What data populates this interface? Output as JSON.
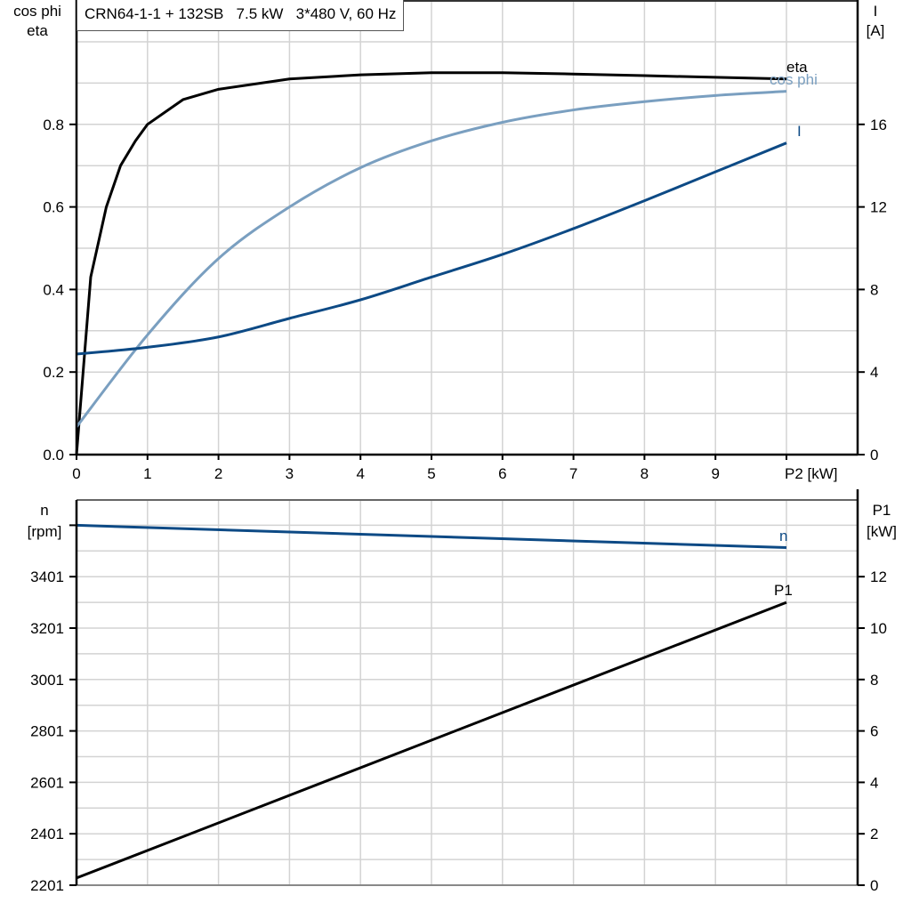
{
  "title": "CRN64-1-1 + 132SB   7.5 kW   3*480 V, 60 Hz",
  "colors": {
    "eta": "#000000",
    "cos_phi": "#7a9fc0",
    "current": "#0d4a85",
    "speed": "#0d4a85",
    "p1": "#000000",
    "grid": "#d3d3d3",
    "axis": "#000000"
  },
  "top_chart": {
    "left_axis_label_line1": "cos phi",
    "left_axis_label_line2": "eta",
    "right_axis_label_line1": "I",
    "right_axis_label_line2": "[A]",
    "x_axis_label": "P2 [kW]",
    "x_ticks": [
      "0",
      "1",
      "2",
      "3",
      "4",
      "5",
      "6",
      "7",
      "8",
      "9"
    ],
    "left_ticks": [
      "0.0",
      "0.2",
      "0.4",
      "0.6",
      "0.8"
    ],
    "right_ticks": [
      "0",
      "4",
      "8",
      "12",
      "16"
    ],
    "curve_labels": {
      "eta": "eta",
      "cos_phi": "cos phi",
      "current": "I"
    }
  },
  "bottom_chart": {
    "left_axis_label_line1": "n",
    "left_axis_label_line2": "[rpm]",
    "right_axis_label_line1": "P1",
    "right_axis_label_line2": "[kW]",
    "left_ticks": [
      "2201",
      "2401",
      "2601",
      "2801",
      "3001",
      "3201",
      "3401"
    ],
    "right_ticks": [
      "0",
      "2",
      "4",
      "6",
      "8",
      "10",
      "12"
    ],
    "curve_labels": {
      "speed": "n",
      "p1": "P1"
    }
  },
  "chart_data": [
    {
      "type": "line",
      "title": "CRN64-1-1 + 132SB   7.5 kW   3*480 V, 60 Hz",
      "xlabel": "P2 [kW]",
      "ylabel": "cos phi / eta",
      "ylabel_right": "I [A]",
      "xlim": [
        0,
        11
      ],
      "ylim": [
        0,
        1.1
      ],
      "ylim_right": [
        0,
        22
      ],
      "grid": true,
      "x": [
        0,
        0.2,
        0.42,
        0.62,
        0.83,
        1,
        1.5,
        2,
        3,
        4,
        5,
        6,
        7,
        8,
        9,
        10
      ],
      "series": [
        {
          "name": "eta",
          "axis": "left",
          "values": [
            0.0,
            0.43,
            0.6,
            0.7,
            0.76,
            0.8,
            0.86,
            0.885,
            0.91,
            0.92,
            0.925,
            0.925,
            0.922,
            0.918,
            0.914,
            0.91
          ]
        },
        {
          "name": "cos phi",
          "axis": "left",
          "x": [
            0,
            1,
            2,
            3,
            4,
            5,
            6,
            7,
            8,
            9,
            10
          ],
          "values": [
            0.067,
            0.29,
            0.475,
            0.6,
            0.695,
            0.76,
            0.805,
            0.835,
            0.855,
            0.87,
            0.88
          ]
        },
        {
          "name": "I",
          "axis": "right",
          "x": [
            0,
            1,
            2,
            3,
            4,
            5,
            6,
            7,
            8,
            9,
            10
          ],
          "values": [
            4.87,
            5.2,
            5.7,
            6.6,
            7.5,
            8.6,
            9.7,
            10.95,
            12.3,
            13.7,
            15.1
          ]
        }
      ]
    },
    {
      "type": "line",
      "xlabel": "P2 [kW]",
      "ylabel": "n [rpm]",
      "ylabel_right": "P1 [kW]",
      "xlim": [
        0,
        11
      ],
      "ylim": [
        2201,
        3701
      ],
      "ylim_right": [
        0,
        15
      ],
      "grid": true,
      "x": [
        0,
        10
      ],
      "series": [
        {
          "name": "n",
          "axis": "left",
          "values": [
            3601,
            3514
          ]
        },
        {
          "name": "P1",
          "axis": "right",
          "values": [
            0.28,
            11.0
          ]
        }
      ]
    }
  ]
}
